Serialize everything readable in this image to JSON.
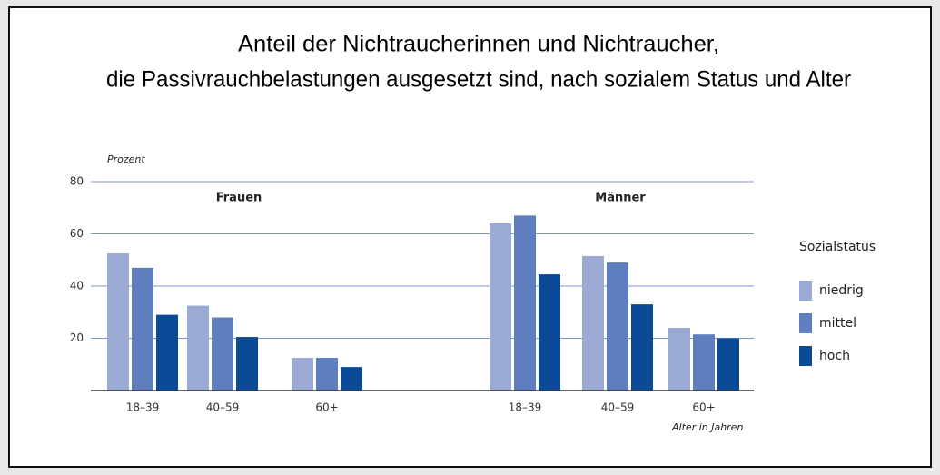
{
  "chart_data": {
    "type": "bar",
    "title": "Anteil der Nichtraucherinnen und Nichtraucher,",
    "subtitle": "die Passivrauchbelastungen ausgesetzt sind, nach sozialem Status und Alter",
    "y_axis_label": "Prozent",
    "x_axis_label": "Alter in Jahren",
    "groups": [
      "Frauen",
      "Männer"
    ],
    "categories": [
      "18–39",
      "40–59",
      "60+",
      "18–39",
      "40–59",
      "60+"
    ],
    "legend_title": "Sozialstatus",
    "series": [
      {
        "name": "niedrig",
        "color": "#9aaad5",
        "values": [
          52.5,
          32.5,
          12.5,
          64,
          51.5,
          24
        ]
      },
      {
        "name": "mittel",
        "color": "#5f7ebd",
        "values": [
          47,
          28,
          12.5,
          67,
          49,
          21.5
        ]
      },
      {
        "name": "hoch",
        "color": "#0b4a97",
        "values": [
          29,
          20.5,
          9,
          44.5,
          33,
          20
        ]
      }
    ],
    "ylim": [
      0,
      80
    ],
    "yticks": [
      20,
      40,
      60,
      80
    ],
    "grid": true
  }
}
